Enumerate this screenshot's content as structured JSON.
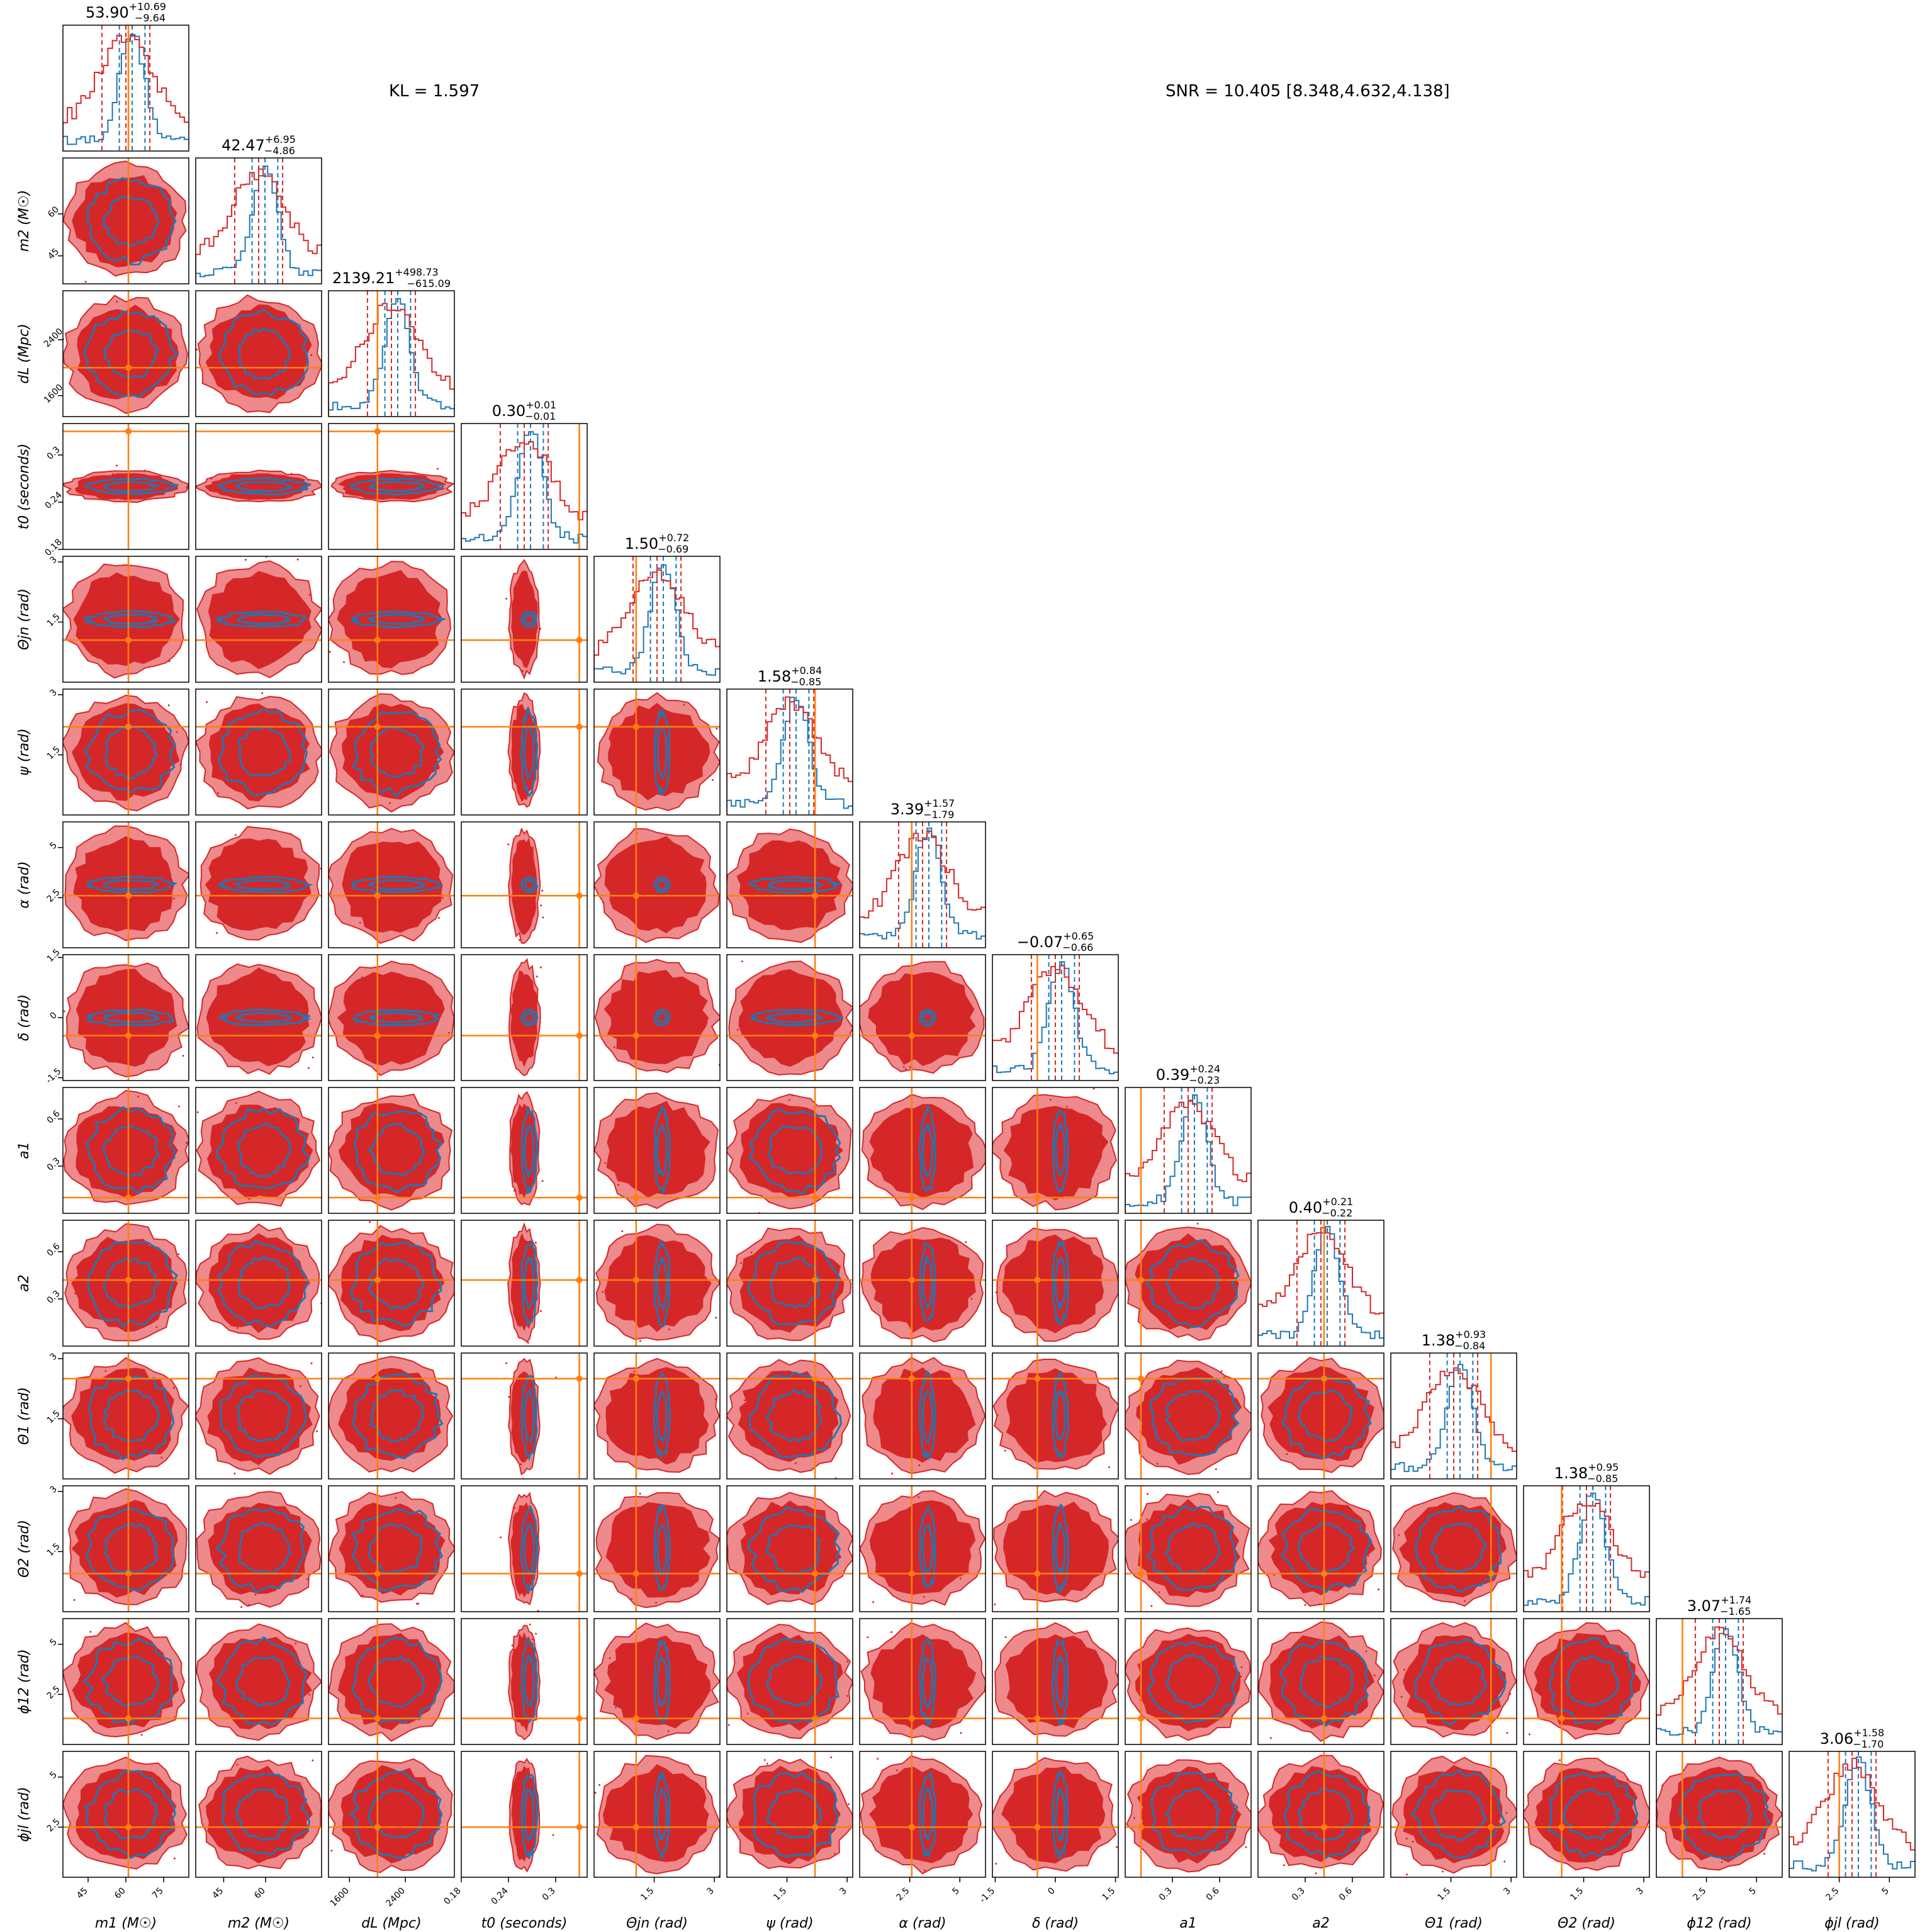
{
  "header": {
    "kl_text": "KL = 1.597",
    "snr_text": "SNR = 10.405 [8.348,4.632,4.138]"
  },
  "colors": {
    "posterior_red": "#d62728",
    "posterior_red_light": "#ee8a8b",
    "posterior_blue": "#1f77b4",
    "truth_orange": "#ff7f0e"
  },
  "chart_data": {
    "type": "corner",
    "title": "",
    "grid": false,
    "parameters": [
      {
        "key": "m1",
        "axis_label": "m1 (M☉)",
        "median_title": "53.90",
        "plus": "+10.69",
        "minus": "−9.64",
        "range": [
          35,
          85
        ],
        "ticks": [
          45,
          60,
          75
        ],
        "truth": 61
      },
      {
        "key": "m2",
        "axis_label": "m2 (M☉)",
        "median_title": "42.47",
        "plus": "+6.95",
        "minus": "−4.86",
        "range": [
          35,
          80
        ],
        "ticks": [
          45,
          60
        ],
        "truth": null
      },
      {
        "key": "dL",
        "axis_label": "dL (Mpc)",
        "median_title": "2139.21",
        "plus": "+498.73",
        "minus": "−615.09",
        "range": [
          1300,
          3100
        ],
        "ticks": [
          1600,
          2400
        ],
        "truth": 2000
      },
      {
        "key": "t0",
        "axis_label": "t0 (seconds)",
        "median_title": "0.30",
        "plus": "+0.01",
        "minus": "−0.01",
        "range": [
          0.18,
          0.34
        ],
        "ticks": [
          0.18,
          0.24,
          0.3
        ],
        "truth": 0.33
      },
      {
        "key": "theta_jn",
        "axis_label": "Θjn (rad)",
        "median_title": "1.50",
        "plus": "+0.72",
        "minus": "−0.69",
        "range": [
          0,
          3.14
        ],
        "ticks": [
          1.5,
          3.0
        ],
        "truth": 1.05
      },
      {
        "key": "psi",
        "axis_label": "ψ (rad)",
        "median_title": "1.58",
        "plus": "+0.84",
        "minus": "−0.85",
        "range": [
          0,
          3.14
        ],
        "ticks": [
          1.5,
          3.0
        ],
        "truth": 2.2
      },
      {
        "key": "alpha",
        "axis_label": "α (rad)",
        "median_title": "3.39",
        "plus": "+1.57",
        "minus": "−1.79",
        "range": [
          0,
          6.28
        ],
        "ticks": [
          2.5,
          5.0
        ],
        "truth": 2.6
      },
      {
        "key": "delta",
        "axis_label": "δ (rad)",
        "median_title": "−0.07",
        "plus": "+0.65",
        "minus": "−0.66",
        "range": [
          -1.57,
          1.57
        ],
        "ticks": [
          -1.5,
          0.0,
          1.5
        ],
        "truth": -0.45
      },
      {
        "key": "a1",
        "axis_label": "a1",
        "median_title": "0.39",
        "plus": "+0.24",
        "minus": "−0.23",
        "range": [
          0,
          0.8
        ],
        "ticks": [
          0.3,
          0.6
        ],
        "truth": 0.1
      },
      {
        "key": "a2",
        "axis_label": "a2",
        "median_title": "0.40",
        "plus": "+0.21",
        "minus": "−0.22",
        "range": [
          0,
          0.8
        ],
        "ticks": [
          0.3,
          0.6
        ],
        "truth": 0.42
      },
      {
        "key": "theta1",
        "axis_label": "Θ1 (rad)",
        "median_title": "1.38",
        "plus": "+0.93",
        "minus": "−0.84",
        "range": [
          0,
          3.14
        ],
        "ticks": [
          1.5,
          3.0
        ],
        "truth": 2.5
      },
      {
        "key": "theta2",
        "axis_label": "Θ2 (rad)",
        "median_title": "1.38",
        "plus": "+0.95",
        "minus": "−0.85",
        "range": [
          0,
          3.14
        ],
        "ticks": [
          1.5,
          3.0
        ],
        "truth": 0.95
      },
      {
        "key": "phi12",
        "axis_label": "ϕ12 (rad)",
        "median_title": "3.07",
        "plus": "+1.74",
        "minus": "−1.65",
        "range": [
          0,
          6.28
        ],
        "ticks": [
          2.5,
          5.0
        ],
        "truth": 1.3
      },
      {
        "key": "phijl",
        "axis_label": "ϕjl (rad)",
        "median_title": "3.06",
        "plus": "+1.58",
        "minus": "−1.70",
        "range": [
          0,
          6.28
        ],
        "ticks": [
          2.5,
          5.0
        ],
        "truth": 2.5
      }
    ]
  }
}
